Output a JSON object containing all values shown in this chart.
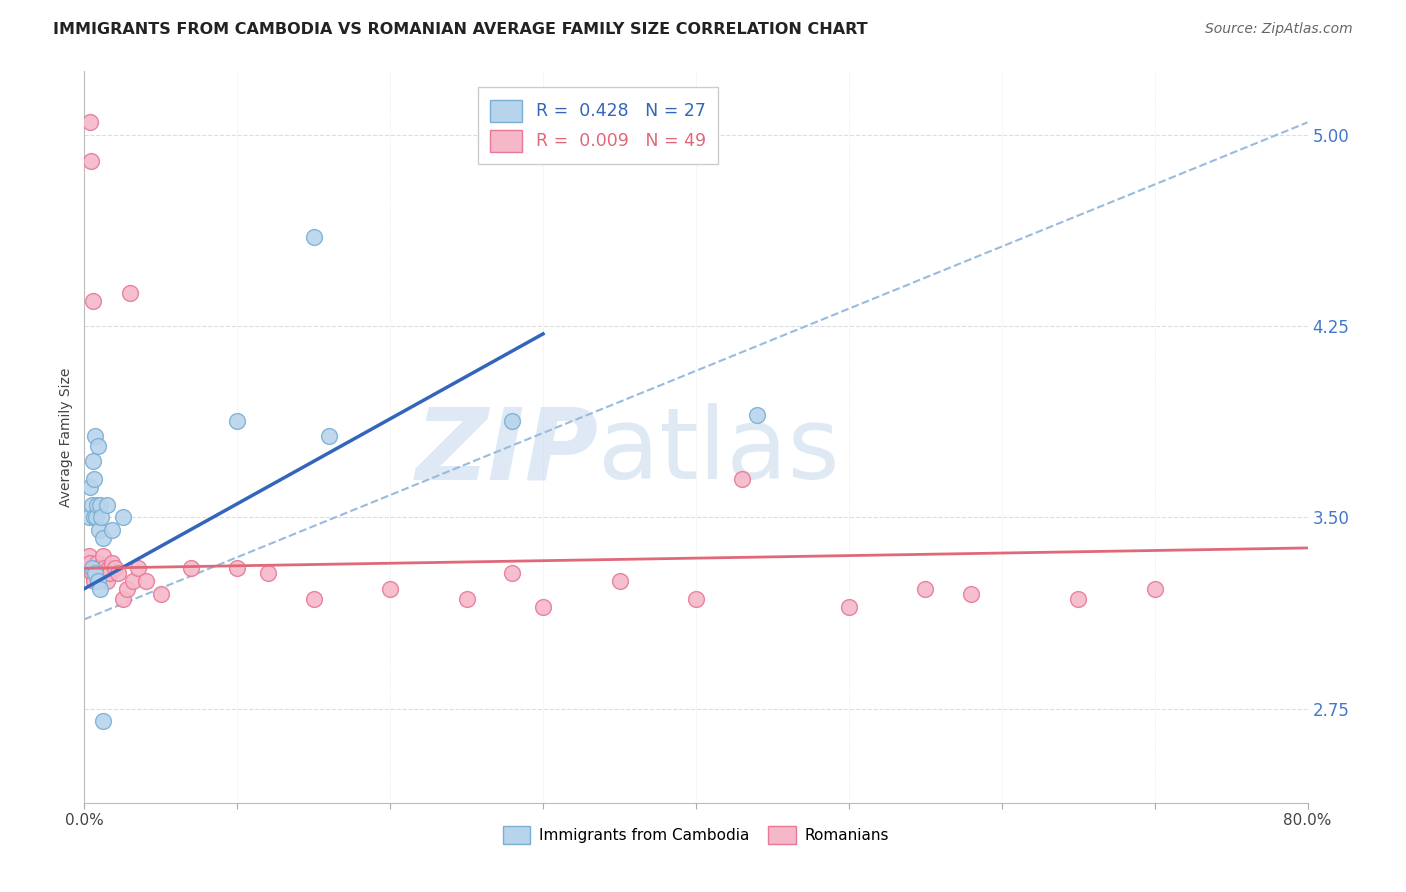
{
  "title": "IMMIGRANTS FROM CAMBODIA VS ROMANIAN AVERAGE FAMILY SIZE CORRELATION CHART",
  "source": "Source: ZipAtlas.com",
  "ylabel": "Average Family Size",
  "yticks": [
    2.75,
    3.5,
    4.25,
    5.0
  ],
  "xlim": [
    0.0,
    80.0
  ],
  "ylim": [
    2.38,
    5.25
  ],
  "cambodia_color": "#b8d4ec",
  "cambodia_edge": "#7aafd4",
  "romanian_color": "#f5b8c8",
  "romanian_edge": "#e87898",
  "cambodia_line_color": "#3366bb",
  "romanian_line_color": "#e06878",
  "dashed_line_color": "#99bbdd",
  "legend_cambodia_label": "Immigrants from Cambodia",
  "legend_romanian_label": "Romanians",
  "watermark_zip": "ZIP",
  "watermark_atlas": "atlas",
  "background_color": "#ffffff",
  "grid_color": "#dddddd",
  "cambodia_x": [
    0.3,
    0.4,
    0.5,
    0.55,
    0.6,
    0.65,
    0.7,
    0.75,
    0.8,
    0.9,
    0.95,
    1.0,
    1.1,
    1.2,
    1.5,
    1.8,
    2.5,
    10.0,
    15.0,
    16.0,
    28.0,
    44.0,
    0.5,
    0.7,
    0.9,
    1.0,
    1.2
  ],
  "cambodia_y": [
    3.5,
    3.62,
    3.55,
    3.72,
    3.65,
    3.5,
    3.82,
    3.5,
    3.55,
    3.78,
    3.45,
    3.55,
    3.5,
    3.42,
    3.55,
    3.45,
    3.5,
    3.88,
    4.6,
    3.82,
    3.88,
    3.9,
    3.3,
    3.28,
    3.25,
    3.22,
    2.7
  ],
  "romanian_x": [
    0.2,
    0.3,
    0.35,
    0.4,
    0.45,
    0.5,
    0.55,
    0.6,
    0.65,
    0.7,
    0.75,
    0.8,
    0.85,
    0.9,
    0.95,
    1.0,
    1.1,
    1.2,
    1.3,
    1.4,
    1.5,
    1.6,
    1.7,
    1.8,
    2.0,
    2.2,
    2.5,
    2.8,
    3.0,
    3.2,
    3.5,
    4.0,
    5.0,
    7.0,
    10.0,
    12.0,
    15.0,
    20.0,
    25.0,
    28.0,
    30.0,
    35.0,
    40.0,
    43.0,
    50.0,
    55.0,
    58.0,
    65.0,
    70.0
  ],
  "romanian_y": [
    3.3,
    3.35,
    5.05,
    3.32,
    4.9,
    3.28,
    4.35,
    3.3,
    3.25,
    3.3,
    3.28,
    3.32,
    3.3,
    3.25,
    3.28,
    3.3,
    3.28,
    3.35,
    3.3,
    3.28,
    3.25,
    3.3,
    3.28,
    3.32,
    3.3,
    3.28,
    3.18,
    3.22,
    4.38,
    3.25,
    3.3,
    3.25,
    3.2,
    3.3,
    3.3,
    3.28,
    3.18,
    3.22,
    3.18,
    3.28,
    3.15,
    3.25,
    3.18,
    3.65,
    3.15,
    3.22,
    3.2,
    3.18,
    3.22
  ],
  "tick_font_size": 11,
  "title_font_size": 11.5,
  "source_font_size": 10
}
